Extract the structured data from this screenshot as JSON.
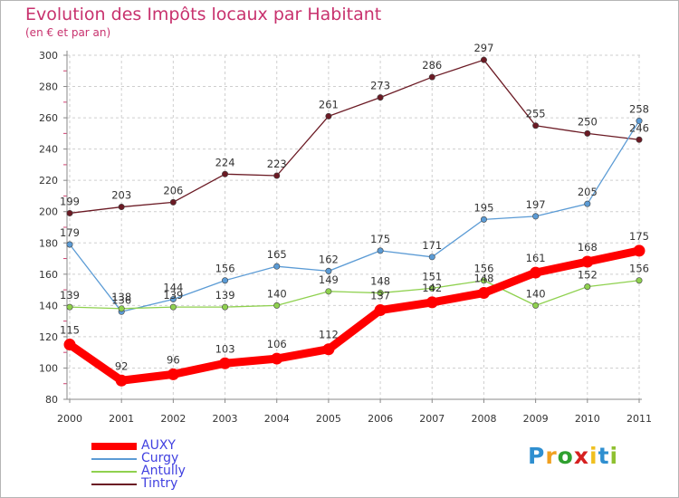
{
  "header": {
    "title": "Evolution des Impôts locaux par Habitant",
    "subtitle": "(en € et par an)"
  },
  "colors": {
    "title": "#c8326e",
    "legend_text": "#4040e0",
    "grid": "#cfcfcf",
    "axis": "#888888"
  },
  "chart_data": {
    "type": "line",
    "title": "Evolution des Impôts locaux par Habitant",
    "ylabel": "(en € et par an)",
    "xlabel": "",
    "x": [
      2000,
      2001,
      2002,
      2003,
      2004,
      2005,
      2006,
      2007,
      2008,
      2009,
      2010,
      2011
    ],
    "ylim": [
      80,
      300
    ],
    "yticks": [
      80,
      100,
      120,
      140,
      160,
      180,
      200,
      220,
      240,
      260,
      280,
      300
    ],
    "grid": true,
    "legend_position": "bottom-left",
    "series": [
      {
        "name": "AUXY",
        "color": "#ff0000",
        "values": [
          115,
          92,
          96,
          103,
          106,
          112,
          137,
          142,
          148,
          161,
          168,
          175
        ]
      },
      {
        "name": "Curgy",
        "color": "#5b9bd5",
        "values": [
          179,
          136,
          144,
          156,
          165,
          162,
          175,
          171,
          195,
          197,
          205,
          258
        ]
      },
      {
        "name": "Antully",
        "color": "#8fd14f",
        "values": [
          139,
          138,
          139,
          139,
          140,
          149,
          148,
          151,
          156,
          140,
          152,
          156
        ]
      },
      {
        "name": "Tintry",
        "color": "#6b1a24",
        "values": [
          199,
          203,
          206,
          224,
          223,
          261,
          273,
          286,
          297,
          255,
          250,
          246
        ]
      }
    ]
  },
  "legend": [
    {
      "label": "AUXY",
      "color": "#ff0000"
    },
    {
      "label": "Curgy",
      "color": "#5b9bd5"
    },
    {
      "label": "Antully",
      "color": "#8fd14f"
    },
    {
      "label": "Tintry",
      "color": "#6b1a24"
    }
  ],
  "logo": {
    "letters": [
      "P",
      "r",
      "o",
      "x",
      "i",
      "t",
      "i"
    ],
    "colors": [
      "#2f8fd0",
      "#f0a020",
      "#2fa02f",
      "#d62020",
      "#f0c020",
      "#2f8fd0",
      "#8fc030"
    ]
  }
}
